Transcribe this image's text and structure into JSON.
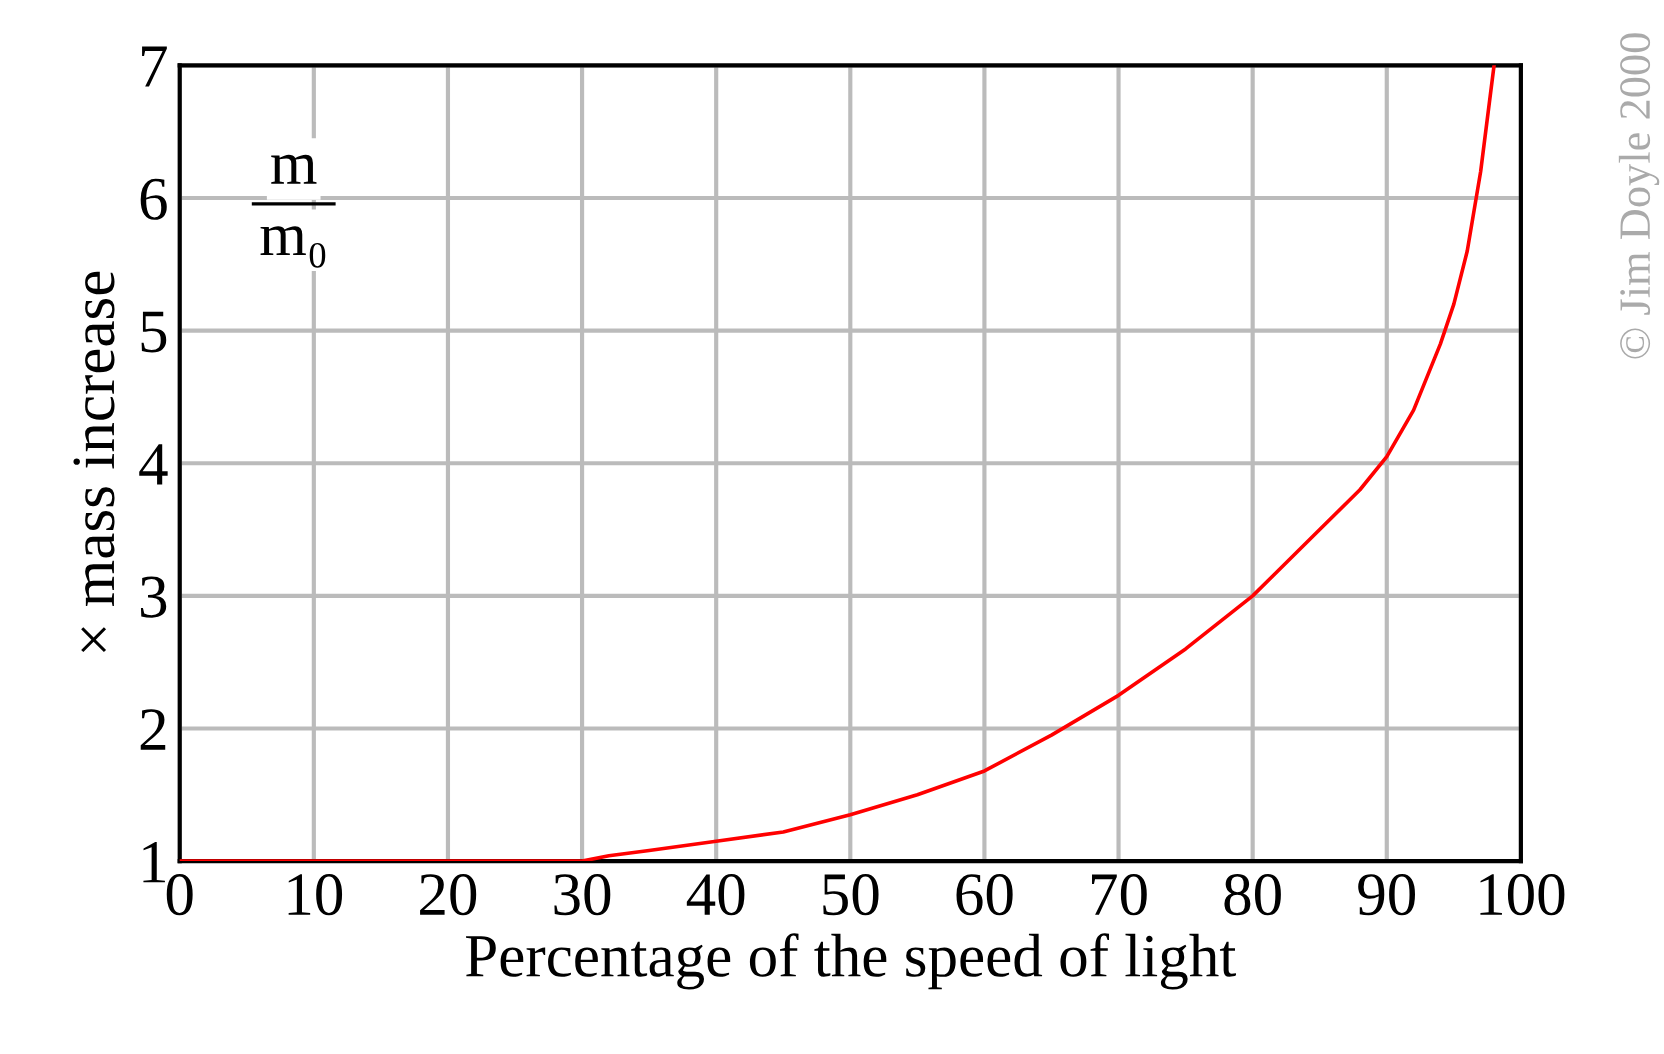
{
  "chart_data": {
    "type": "line",
    "xlabel": "Percentage of the speed of light",
    "ylabel": "× mass increase",
    "x": [
      0,
      10,
      20,
      30,
      32,
      35,
      40,
      45,
      50,
      55,
      60,
      65,
      70,
      75,
      80,
      85,
      88,
      90,
      92,
      94,
      95,
      96,
      97,
      98
    ],
    "series": [
      {
        "color": "#ff0000",
        "values": [
          1,
          1,
          1,
          1,
          1.04,
          1.08,
          1.15,
          1.22,
          1.35,
          1.5,
          1.68,
          1.95,
          2.25,
          2.6,
          3.0,
          3.5,
          3.8,
          4.05,
          4.4,
          4.9,
          5.2,
          5.6,
          6.2,
          7.0
        ]
      }
    ],
    "xlim": [
      0,
      100
    ],
    "ylim": [
      1,
      7
    ],
    "xticks": [
      0,
      10,
      20,
      30,
      40,
      50,
      60,
      70,
      80,
      90,
      100
    ],
    "yticks": [
      1,
      2,
      3,
      4,
      5,
      6,
      7
    ],
    "grid": true,
    "marker": "none",
    "line_style": "solid",
    "annotations": [
      "m",
      "m₀",
      "© Jim Doyle 2000"
    ]
  }
}
